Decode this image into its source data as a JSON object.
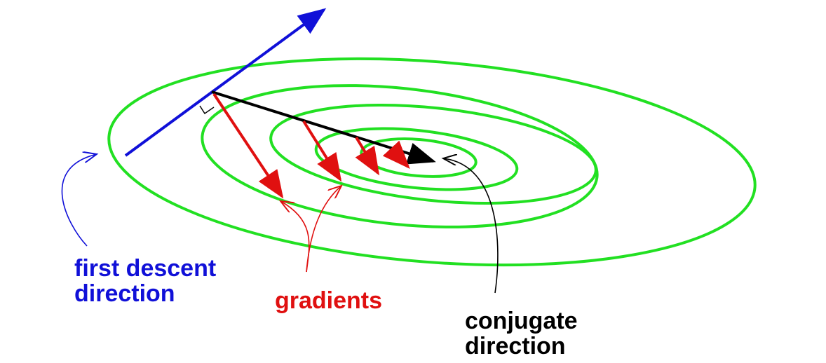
{
  "labels": {
    "first_descent_line1": "first descent",
    "first_descent_line2": "direction",
    "gradients": "gradients",
    "conjugate_line1": "conjugate",
    "conjugate_line2": "direction"
  },
  "colors": {
    "contour": "#22e022",
    "first_descent": "#1010d8",
    "gradient": "#e01010",
    "conjugate": "#000000",
    "background": "#ffffff"
  },
  "contour_count": 5,
  "gradient_arrow_count": 4
}
